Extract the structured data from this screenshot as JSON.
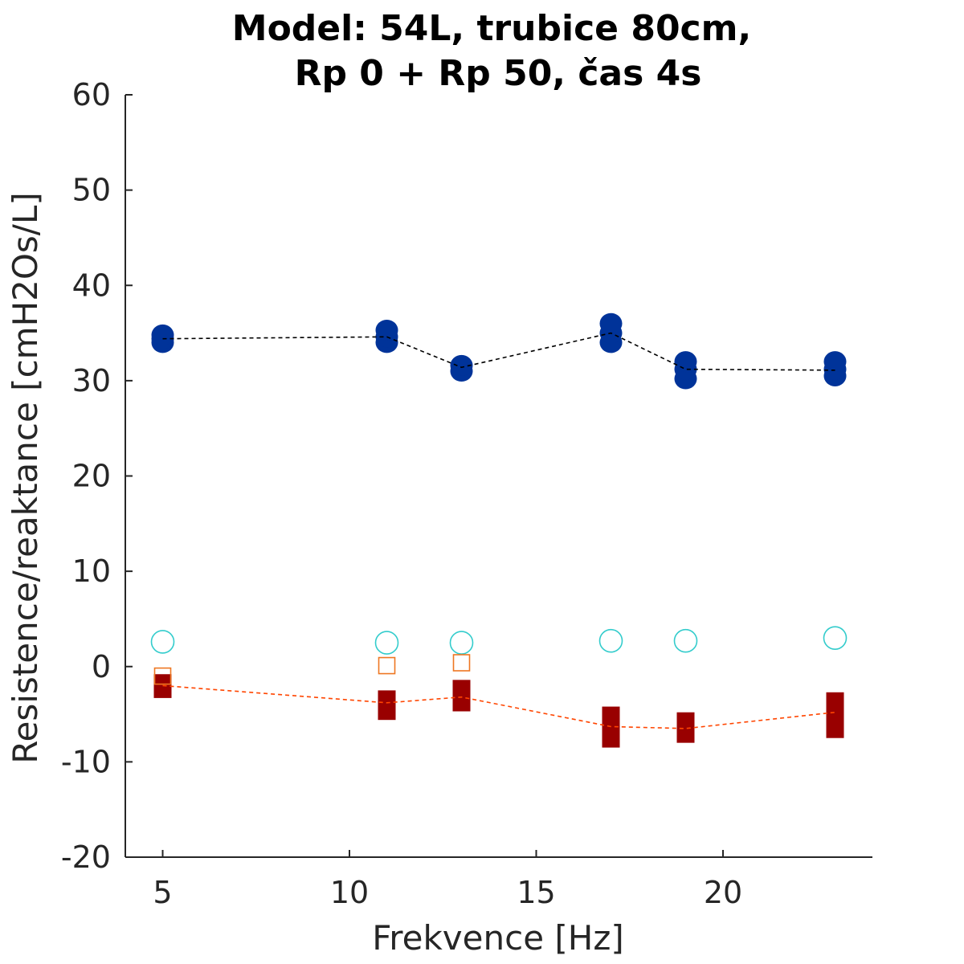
{
  "chart_data": {
    "type": "scatter",
    "title": [
      "Model: 54L, trubice 80cm,",
      "Rp 0 + Rp 50, čas 4s"
    ],
    "xlabel": "Frekvence [Hz]",
    "ylabel": "Resistence/reaktance [cmH2Os/L]",
    "xlim": [
      4,
      24
    ],
    "ylim": [
      -20,
      60
    ],
    "xticks": [
      5,
      10,
      15,
      20
    ],
    "yticks": [
      -20,
      -10,
      0,
      10,
      20,
      30,
      40,
      50,
      60
    ],
    "grid": false,
    "legend": "none",
    "series": [
      {
        "kind": "resistance-points",
        "marker": "filled-circle",
        "color": "#003399",
        "points": [
          [
            5,
            34.0
          ],
          [
            5,
            34.4
          ],
          [
            5,
            34.8
          ],
          [
            11,
            34.0
          ],
          [
            11,
            34.6
          ],
          [
            11,
            35.3
          ],
          [
            13,
            31.0
          ],
          [
            13,
            31.6
          ],
          [
            17,
            34.0
          ],
          [
            17,
            35.0
          ],
          [
            17,
            36.0
          ],
          [
            19,
            30.2
          ],
          [
            19,
            31.2
          ],
          [
            19,
            32.0
          ],
          [
            23,
            30.5
          ],
          [
            23,
            31.2
          ],
          [
            23,
            32.0
          ]
        ]
      },
      {
        "kind": "resistance-mean",
        "line": "dashed",
        "color": "#000000",
        "x": [
          5,
          11,
          13,
          17,
          19,
          23
        ],
        "y": [
          34.4,
          34.6,
          31.4,
          35.0,
          31.2,
          31.1
        ]
      },
      {
        "kind": "reactance-range",
        "marker": "filled-bar",
        "color": "#990000",
        "x": [
          5,
          11,
          13,
          17,
          19,
          23
        ],
        "ymin": [
          -3.3,
          -5.6,
          -4.7,
          -8.5,
          -8.0,
          -7.5
        ],
        "ymax": [
          -0.8,
          -2.5,
          -1.4,
          -4.2,
          -4.8,
          -2.7
        ]
      },
      {
        "kind": "reactance-mean",
        "line": "dashed",
        "color": "#ff4500",
        "x": [
          5,
          11,
          13,
          17,
          19,
          23
        ],
        "y": [
          -2.0,
          -3.8,
          -3.2,
          -6.3,
          -6.5,
          -4.8
        ]
      },
      {
        "kind": "open-circle",
        "marker": "open-circle",
        "color": "#33cccc",
        "x": [
          5,
          11,
          13,
          17,
          19,
          23
        ],
        "y": [
          2.6,
          2.5,
          2.5,
          2.7,
          2.7,
          3.0
        ]
      },
      {
        "kind": "open-square",
        "marker": "open-square",
        "color": "#ee7722",
        "x": [
          5,
          11,
          13
        ],
        "y": [
          -1.0,
          0.1,
          0.4
        ]
      }
    ]
  }
}
